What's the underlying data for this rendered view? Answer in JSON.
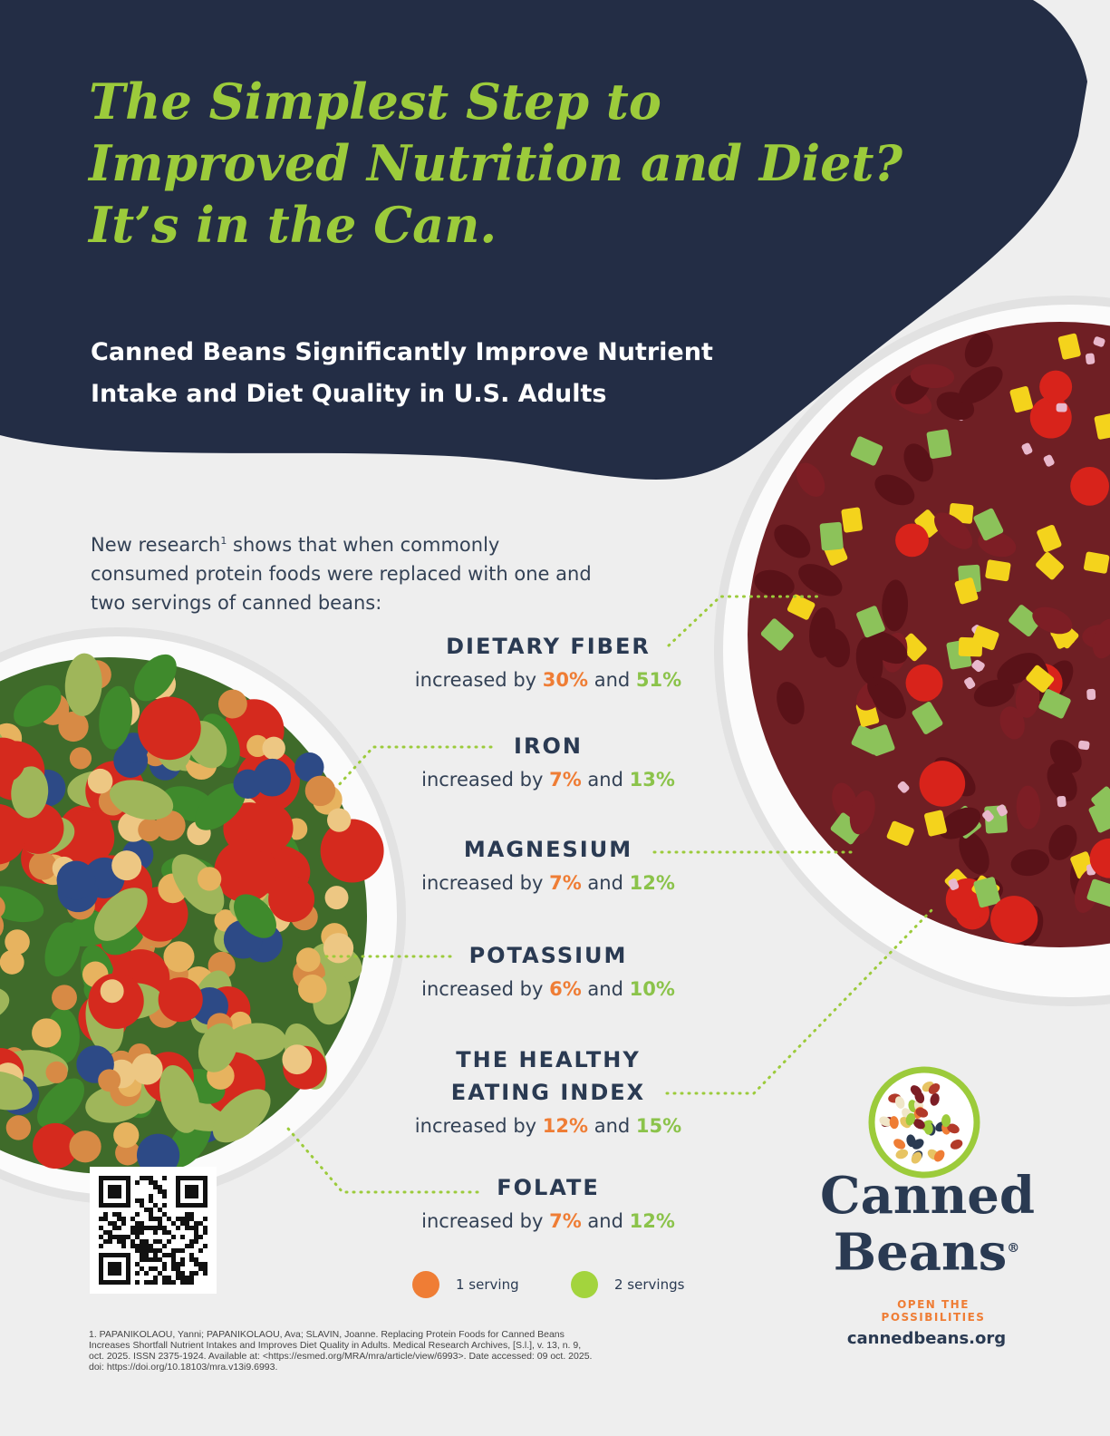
{
  "header": {
    "title_lines": [
      "The Simplest Step to",
      "Improved Nutrition and Diet?",
      "It’s in the Can."
    ],
    "subtitle_lines": [
      "Canned Beans Significantly Improve Nutrient",
      "Intake and Diet Quality in U.S. Adults"
    ]
  },
  "intro": {
    "before_sup": "New research",
    "sup": "1",
    "after_sup": " shows that when commonly consumed protein foods were replaced with one and two servings of canned beans:"
  },
  "nutrients": [
    {
      "name_lines": [
        "DIETARY FIBER"
      ],
      "prefix": "increased by",
      "one": "30%",
      "and": "and",
      "two": "51%"
    },
    {
      "name_lines": [
        "IRON"
      ],
      "prefix": "increased by",
      "one": "7%",
      "and": "and",
      "two": "13%"
    },
    {
      "name_lines": [
        "MAGNESIUM"
      ],
      "prefix": "increased by",
      "one": "7%",
      "and": "and",
      "two": "12%"
    },
    {
      "name_lines": [
        "POTASSIUM"
      ],
      "prefix": "increased by",
      "one": "6%",
      "and": "and",
      "two": "10%"
    },
    {
      "name_lines": [
        "THE HEALTHY",
        "EATING INDEX"
      ],
      "prefix": "increased by",
      "one": "12%",
      "and": "and",
      "two": "15%"
    },
    {
      "name_lines": [
        "FOLATE"
      ],
      "prefix": "increased by",
      "one": "7%",
      "and": "and",
      "two": "12%"
    }
  ],
  "legend": {
    "one_label": "1 serving",
    "one_color": "#ef7d35",
    "two_label": "2 servings",
    "two_color": "#a3d43d"
  },
  "footnote": "1. PAPANIKOLAOU, Yanni; PAPANIKOLAOU, Ava; SLAVIN, Joanne. Replacing Protein Foods for Canned Beans Increases Shortfall Nutrient Intakes and Improves Diet Quality in Adults. Medical Research Archives, [S.l.], v. 13, n. 9, oct. 2025. ISSN 2375-1924. Available at: <https://esmed.org/MRA/mra/article/view/6993>. Date accessed: 09 oct. 2025. doi: https://doi.org/10.18103/mra.v13i9.6993.",
  "brand": {
    "line1": "Canned",
    "line2": "Beans",
    "reg": "®",
    "tagline": "OPEN THE POSSIBILITIES",
    "website": "cannedbeans.org"
  },
  "colors": {
    "navy": "#232d45",
    "accent_green": "#9ccb3b",
    "accent_orange": "#ef7d35"
  }
}
